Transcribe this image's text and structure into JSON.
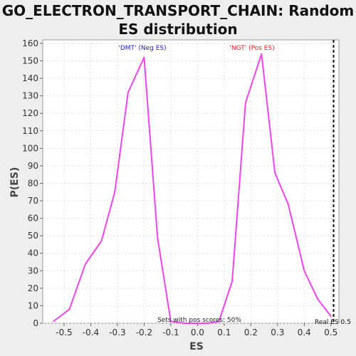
{
  "chart_data": {
    "type": "line",
    "title_line1": "GO_ELECTRON_TRANSPORT_CHAIN: Random",
    "title_line2": "ES distribution",
    "xlabel": "ES",
    "ylabel": "P(ES)",
    "xlim": [
      -0.58,
      0.53
    ],
    "ylim": [
      0,
      162
    ],
    "x_ticks": [
      -0.5,
      -0.4,
      -0.3,
      -0.2,
      -0.1,
      0.0,
      0.1,
      0.2,
      0.3,
      0.4,
      0.5
    ],
    "x_tick_labels": [
      "-0.5",
      "-0.4",
      "-0.3",
      "-0.2",
      "-0.1",
      "0.0",
      "0.1",
      "0.2",
      "0.3",
      "0.4",
      "0.5"
    ],
    "y_ticks": [
      0,
      10,
      20,
      30,
      40,
      50,
      60,
      70,
      80,
      90,
      100,
      110,
      120,
      130,
      140,
      150,
      160
    ],
    "y_tick_labels": [
      "0",
      "10",
      "20",
      "30",
      "40",
      "50",
      "60",
      "70",
      "80",
      "90",
      "100",
      "110",
      "120",
      "130",
      "140",
      "150",
      "160"
    ],
    "grid": true,
    "series": [
      {
        "color": "#ee44ee",
        "x": [
          -0.54,
          -0.48,
          -0.42,
          -0.36,
          -0.31,
          -0.26,
          -0.2,
          -0.15,
          -0.1,
          -0.05,
          0.0,
          0.04,
          0.08,
          0.13,
          0.18,
          0.24,
          0.29,
          0.34,
          0.4,
          0.45,
          0.5
        ],
        "y": [
          1,
          8,
          34,
          47,
          75,
          132,
          152,
          49,
          1,
          0,
          0,
          0,
          1,
          24,
          126,
          154,
          86,
          68,
          30,
          14,
          4
        ]
      }
    ],
    "annotations": {
      "neg": {
        "text": "'DMT' (Neg ES)",
        "color": "#2222cc"
      },
      "pos": {
        "text": "'NGT' (Pos ES)",
        "color": "#ee2222"
      },
      "pos_scores": {
        "text": "Sets with pos scores: 50%",
        "color": "#222222"
      },
      "real_es": {
        "text": "Real ES 0.5",
        "x": 0.51,
        "color": "#111111"
      }
    }
  }
}
